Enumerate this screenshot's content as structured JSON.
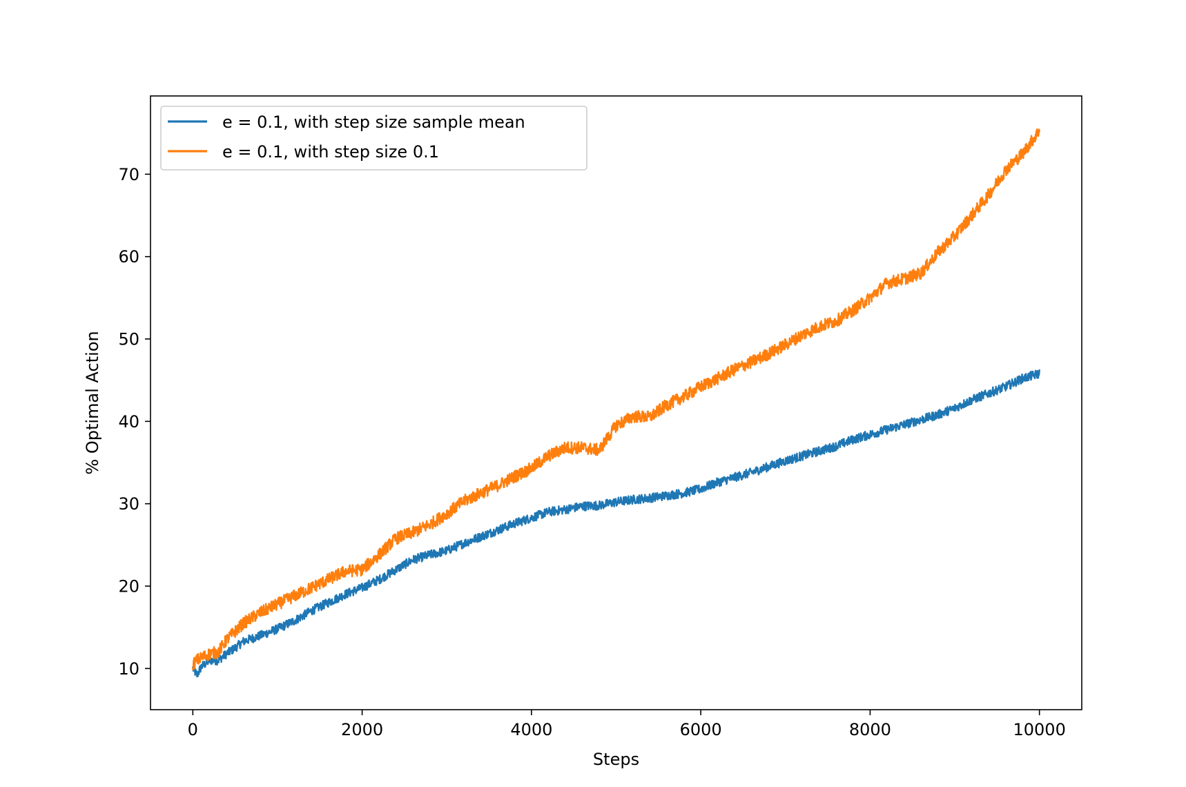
{
  "chart_data": {
    "type": "line",
    "title": "",
    "xlabel": "Steps",
    "ylabel": "% Optimal Action",
    "xlim": [
      -500,
      10500
    ],
    "ylim": [
      5,
      79.5
    ],
    "xticks": [
      0,
      2000,
      4000,
      6000,
      8000,
      10000
    ],
    "yticks": [
      10,
      20,
      30,
      40,
      50,
      60,
      70
    ],
    "grid": false,
    "legend_position": "top-left",
    "series": [
      {
        "name": "e = 0.1, with step size sample mean",
        "color": "#1f77b4",
        "x": [
          0,
          50,
          100,
          200,
          300,
          400,
          500,
          600,
          800,
          1000,
          1200,
          1400,
          1600,
          1800,
          2000,
          2200,
          2400,
          2600,
          2800,
          3000,
          3200,
          3400,
          3600,
          3800,
          4000,
          4200,
          4400,
          4600,
          4800,
          5000,
          5200,
          5400,
          5600,
          5800,
          6000,
          6200,
          6400,
          6600,
          6800,
          7000,
          7200,
          7400,
          7600,
          7800,
          8000,
          8200,
          8400,
          8600,
          8800,
          9000,
          9200,
          9400,
          9600,
          9800,
          10000
        ],
        "y": [
          10,
          9.2,
          10.2,
          11,
          11,
          11.8,
          12.5,
          13.3,
          14,
          14.8,
          15.8,
          17,
          18,
          19,
          19.8,
          20.8,
          22,
          23.2,
          23.8,
          24.3,
          25.2,
          26,
          26.8,
          27.6,
          28.3,
          29,
          29.3,
          29.7,
          29.8,
          30.2,
          30.5,
          30.7,
          31,
          31.3,
          31.8,
          32.6,
          33.2,
          33.8,
          34.5,
          35.2,
          35.8,
          36.4,
          37,
          37.8,
          38.4,
          39,
          39.6,
          40.2,
          40.8,
          41.6,
          42.6,
          43.4,
          44.2,
          45.2,
          45.8
        ]
      },
      {
        "name": "e = 0.1, with step size 0.1",
        "color": "#ff7f0e",
        "x": [
          0,
          50,
          100,
          200,
          300,
          400,
          500,
          600,
          800,
          1000,
          1200,
          1400,
          1600,
          1800,
          2000,
          2200,
          2400,
          2600,
          2800,
          3000,
          3200,
          3400,
          3600,
          3800,
          4000,
          4200,
          4400,
          4600,
          4800,
          5000,
          5200,
          5400,
          5600,
          5800,
          6000,
          6200,
          6400,
          6600,
          6800,
          7000,
          7200,
          7400,
          7600,
          7800,
          8000,
          8200,
          8400,
          8600,
          8800,
          9000,
          9200,
          9400,
          9600,
          9800,
          10000
        ],
        "y": [
          10.5,
          11,
          11.3,
          11.8,
          12,
          13.5,
          14.5,
          15.5,
          16.8,
          17.8,
          18.8,
          19.8,
          20.8,
          21.8,
          22,
          23.8,
          25.8,
          26.5,
          27.5,
          28.8,
          30.3,
          31.3,
          32.2,
          33.3,
          34.3,
          35.8,
          36.8,
          36.8,
          36.5,
          39.5,
          40.6,
          40.5,
          42,
          43,
          44.2,
          45.2,
          46.3,
          47.2,
          48.2,
          49.3,
          50.5,
          51.5,
          52.2,
          53.5,
          55,
          56.8,
          57.3,
          58,
          60.5,
          62.5,
          65,
          67.5,
          70.5,
          72.5,
          75.3
        ]
      }
    ]
  }
}
